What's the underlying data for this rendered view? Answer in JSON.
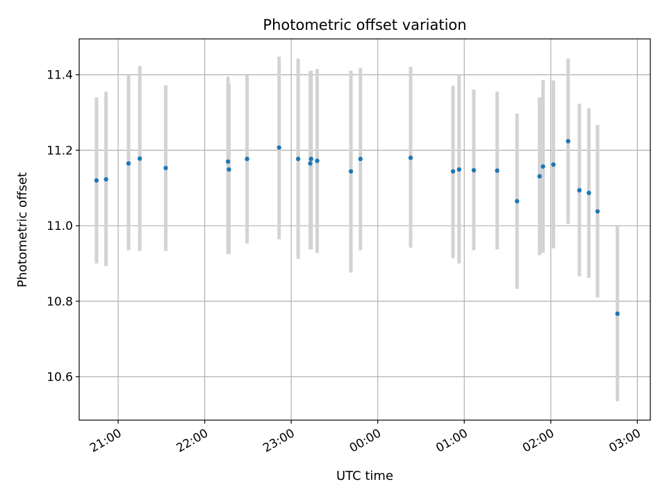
{
  "chart_data": {
    "type": "scatter",
    "title": "Photometric offset variation",
    "xlabel": "UTC time",
    "ylabel": "Photometric offset",
    "x_unit": "hours after midnight",
    "xlim": [
      20.55,
      27.15
    ],
    "ylim": [
      10.485,
      11.495
    ],
    "yticks": [
      10.6,
      10.8,
      11.0,
      11.2,
      11.4
    ],
    "xticks": [
      {
        "value": 21.0,
        "label": "21:00"
      },
      {
        "value": 22.0,
        "label": "22:00"
      },
      {
        "value": 23.0,
        "label": "23:00"
      },
      {
        "value": 24.0,
        "label": "00:00"
      },
      {
        "value": 25.0,
        "label": "01:00"
      },
      {
        "value": 26.0,
        "label": "02:00"
      },
      {
        "value": 27.0,
        "label": "03:00"
      }
    ],
    "grid": true,
    "marker_color": "#1f77b4",
    "errorbar_color": "#d3d3d3",
    "points": [
      {
        "x": 20.75,
        "y": 11.12,
        "lo": 10.9,
        "hi": 11.34
      },
      {
        "x": 20.86,
        "y": 11.123,
        "lo": 10.893,
        "hi": 11.355
      },
      {
        "x": 21.12,
        "y": 11.165,
        "lo": 10.935,
        "hi": 11.4
      },
      {
        "x": 21.25,
        "y": 11.178,
        "lo": 10.933,
        "hi": 11.423
      },
      {
        "x": 21.55,
        "y": 11.153,
        "lo": 10.933,
        "hi": 11.372
      },
      {
        "x": 22.27,
        "y": 11.17,
        "lo": 10.925,
        "hi": 11.395
      },
      {
        "x": 22.28,
        "y": 11.149,
        "lo": 10.925,
        "hi": 11.375
      },
      {
        "x": 22.49,
        "y": 11.177,
        "lo": 10.953,
        "hi": 11.4
      },
      {
        "x": 22.86,
        "y": 11.207,
        "lo": 10.964,
        "hi": 11.448
      },
      {
        "x": 23.08,
        "y": 11.177,
        "lo": 10.912,
        "hi": 11.443
      },
      {
        "x": 23.22,
        "y": 11.165,
        "lo": 10.937,
        "hi": 11.408
      },
      {
        "x": 23.23,
        "y": 11.177,
        "lo": 10.937,
        "hi": 11.411
      },
      {
        "x": 23.3,
        "y": 11.172,
        "lo": 10.928,
        "hi": 11.415
      },
      {
        "x": 23.69,
        "y": 11.144,
        "lo": 10.876,
        "hi": 11.411
      },
      {
        "x": 23.8,
        "y": 11.177,
        "lo": 10.935,
        "hi": 11.418
      },
      {
        "x": 24.38,
        "y": 11.18,
        "lo": 10.942,
        "hi": 11.421
      },
      {
        "x": 24.87,
        "y": 11.144,
        "lo": 10.914,
        "hi": 11.371
      },
      {
        "x": 24.94,
        "y": 11.149,
        "lo": 10.9,
        "hi": 11.4
      },
      {
        "x": 25.11,
        "y": 11.147,
        "lo": 10.935,
        "hi": 11.361
      },
      {
        "x": 25.38,
        "y": 11.146,
        "lo": 10.937,
        "hi": 11.355
      },
      {
        "x": 25.61,
        "y": 11.065,
        "lo": 10.833,
        "hi": 11.297
      },
      {
        "x": 25.87,
        "y": 11.131,
        "lo": 10.922,
        "hi": 11.34
      },
      {
        "x": 25.91,
        "y": 11.157,
        "lo": 10.928,
        "hi": 11.386
      },
      {
        "x": 26.03,
        "y": 11.162,
        "lo": 10.94,
        "hi": 11.385
      },
      {
        "x": 26.2,
        "y": 11.224,
        "lo": 11.005,
        "hi": 11.443
      },
      {
        "x": 26.33,
        "y": 11.094,
        "lo": 10.866,
        "hi": 11.323
      },
      {
        "x": 26.44,
        "y": 11.087,
        "lo": 10.862,
        "hi": 11.311
      },
      {
        "x": 26.54,
        "y": 11.038,
        "lo": 10.81,
        "hi": 11.267
      },
      {
        "x": 26.77,
        "y": 10.767,
        "lo": 10.535,
        "hi": 11.0
      }
    ]
  }
}
